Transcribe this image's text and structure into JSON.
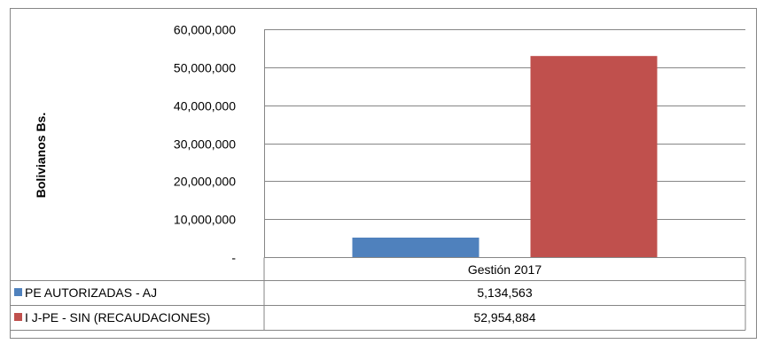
{
  "chart_data": {
    "type": "bar",
    "title": "",
    "xlabel": "",
    "ylabel": "Bolivianos Bs.",
    "ylim": [
      0,
      60000000
    ],
    "y_ticks": [
      {
        "value": 0,
        "label": "-"
      },
      {
        "value": 10000000,
        "label": "10,000,000"
      },
      {
        "value": 20000000,
        "label": "20,000,000"
      },
      {
        "value": 30000000,
        "label": "30,000,000"
      },
      {
        "value": 40000000,
        "label": "40,000,000"
      },
      {
        "value": 50000000,
        "label": "50,000,000"
      },
      {
        "value": 60000000,
        "label": "60,000,000"
      }
    ],
    "grid": true,
    "legend": "data-table",
    "categories": [
      "Gestión 2017"
    ],
    "series": [
      {
        "name": "PE AUTORIZADAS - AJ",
        "values": [
          5134563
        ],
        "value_labels": [
          "5,134,563"
        ],
        "color": "#4f81bd"
      },
      {
        "name": "I J-PE - SIN (RECAUDACIONES)",
        "values": [
          52954884
        ],
        "value_labels": [
          "52,954,884"
        ],
        "color": "#c0504d"
      }
    ]
  }
}
